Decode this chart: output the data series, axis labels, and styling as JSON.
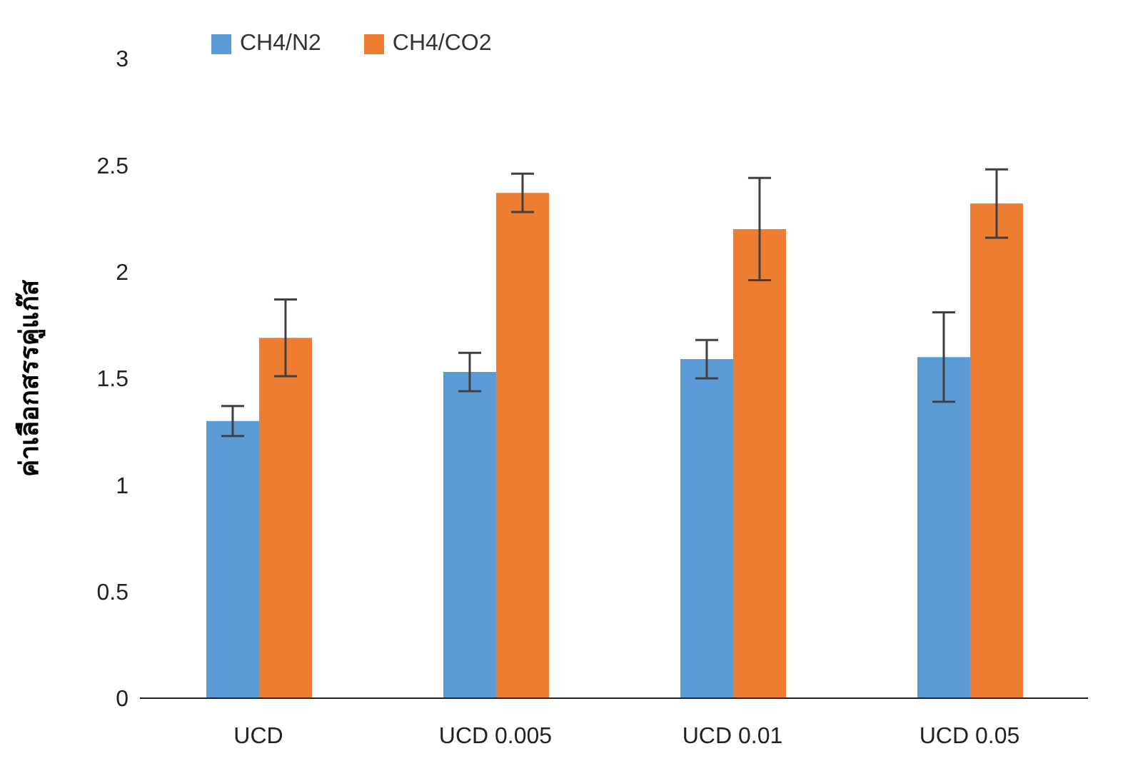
{
  "chart_data": {
    "type": "bar",
    "ylabel": "ค่าเลือกสรรคู่แก๊ส",
    "categories": [
      "UCD",
      "UCD 0.005",
      "UCD 0.01",
      "UCD 0.05"
    ],
    "series": [
      {
        "name": "CH4/N2",
        "color": "#5b9bd5",
        "values": [
          1.3,
          1.53,
          1.59,
          1.6
        ],
        "errors": [
          0.07,
          0.09,
          0.09,
          0.21
        ]
      },
      {
        "name": "CH4/CO2",
        "color": "#ed7d31",
        "values": [
          1.69,
          2.37,
          2.2,
          2.32
        ],
        "errors": [
          0.18,
          0.09,
          0.24,
          0.16
        ]
      }
    ],
    "ylim": [
      0,
      3
    ],
    "yticks": [
      0,
      0.5,
      1,
      1.5,
      2,
      2.5,
      3
    ],
    "grid": false,
    "legend": "top left"
  }
}
